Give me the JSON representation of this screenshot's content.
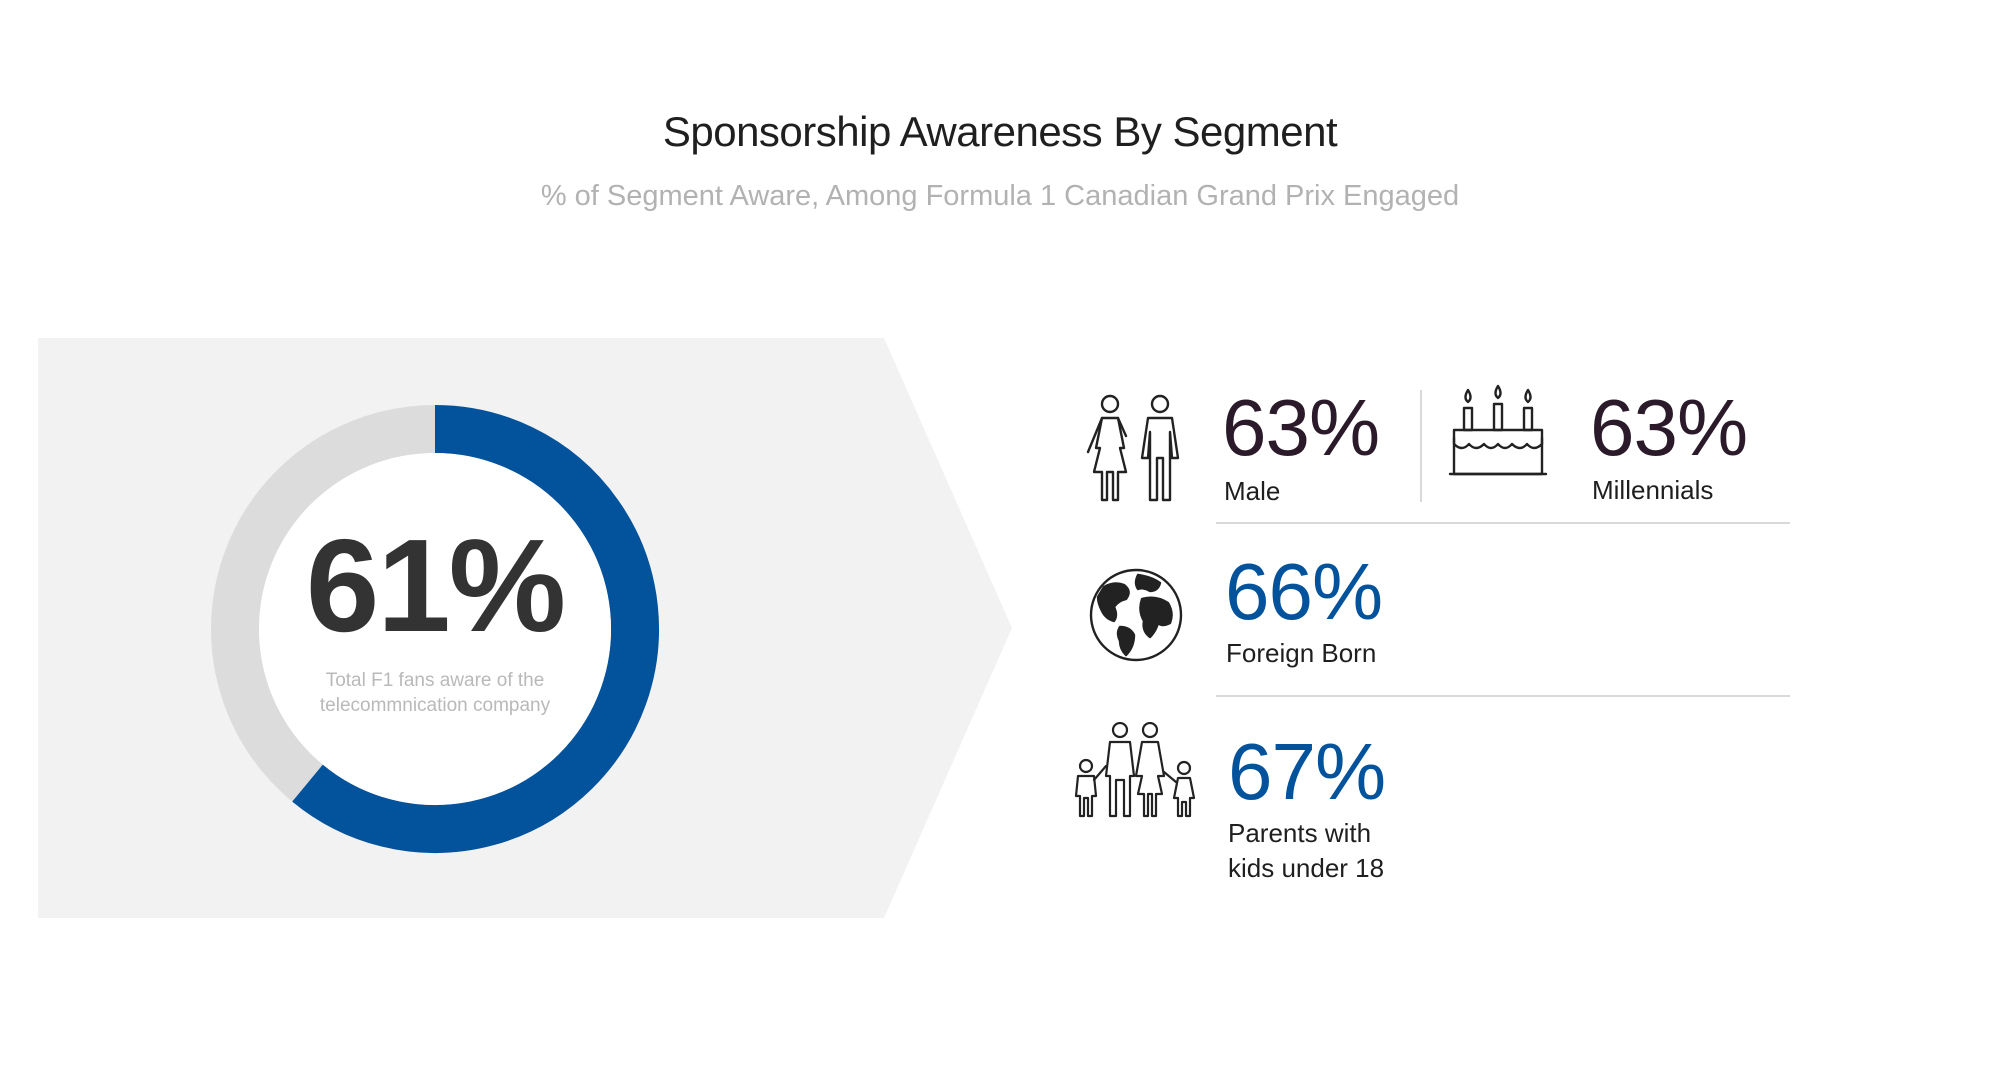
{
  "title": "Sponsorship Awareness By Segment",
  "subtitle": "% of Segment Aware, Among Formula 1 Canadian Grand Prix Engaged",
  "colors": {
    "accent_blue": "#03529c",
    "dark_purple": "#2b1a2a",
    "donut_track": "#dcdcdc",
    "panel_bg": "#f2f2f2"
  },
  "chart_data": {
    "type": "donut",
    "value": 61,
    "value_label": "61%",
    "caption": "Total F1 fans aware of the telecommnication company",
    "segments": [
      {
        "name": "Male",
        "value": 63,
        "label": "63%",
        "icon": "couple-icon",
        "color": "#2b1a2a"
      },
      {
        "name": "Millennials",
        "value": 63,
        "label": "63%",
        "icon": "birthday-cake-icon",
        "color": "#2b1a2a"
      },
      {
        "name": "Foreign Born",
        "value": 66,
        "label": "66%",
        "icon": "globe-icon",
        "color": "#03529c"
      },
      {
        "name": "Parents with kids under 18",
        "value": 67,
        "label": "67%",
        "icon": "family-icon",
        "color": "#03529c"
      }
    ]
  },
  "labels": {
    "parents_line1": "Parents with",
    "parents_line2": "kids under 18"
  }
}
